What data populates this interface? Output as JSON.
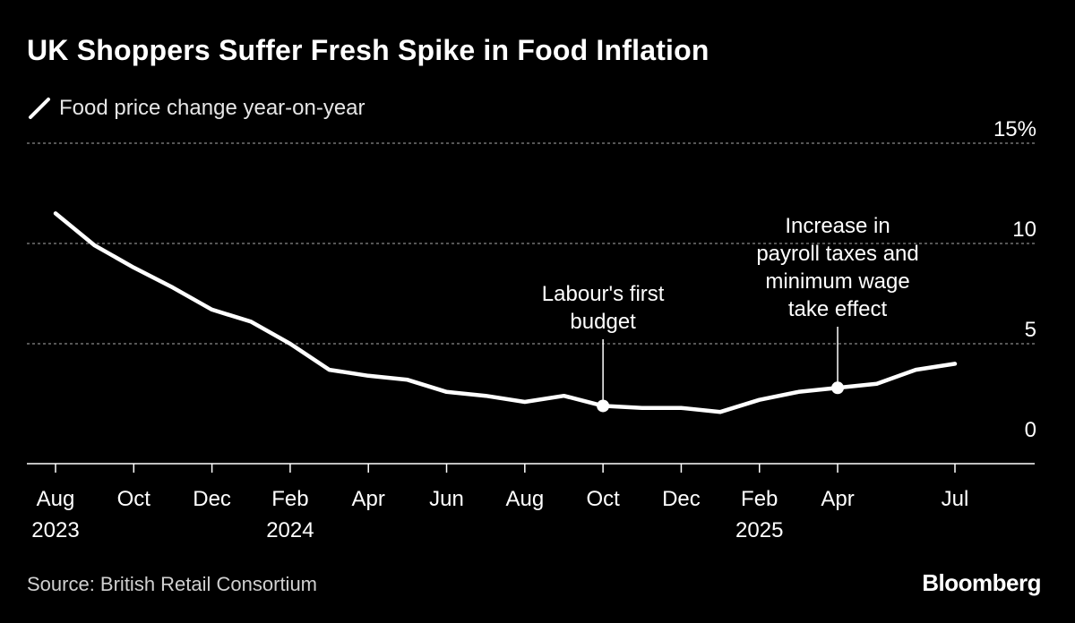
{
  "colors": {
    "background": "#000000",
    "line": "#ffffff",
    "grid": "#8a8a8a",
    "text": "#ffffff",
    "muted": "#d0d0d0"
  },
  "chart_data": {
    "type": "line",
    "title": "UK Shoppers Suffer Fresh Spike in Food Inflation",
    "series": [
      {
        "name": "Food price change year-on-year",
        "values": [
          11.5,
          9.9,
          8.8,
          7.8,
          6.7,
          6.1,
          5.0,
          3.7,
          3.4,
          3.2,
          2.6,
          2.4,
          2.1,
          2.4,
          1.9,
          1.8,
          1.8,
          1.6,
          2.2,
          2.6,
          2.8,
          3.0,
          3.7,
          4.0
        ]
      }
    ],
    "x": [
      "2023-08",
      "2023-09",
      "2023-10",
      "2023-11",
      "2023-12",
      "2024-01",
      "2024-02",
      "2024-03",
      "2024-04",
      "2024-05",
      "2024-06",
      "2024-07",
      "2024-08",
      "2024-09",
      "2024-10",
      "2024-11",
      "2024-12",
      "2025-01",
      "2025-02",
      "2025-03",
      "2025-04",
      "2025-05",
      "2025-06",
      "2025-07"
    ],
    "xticks": [
      {
        "index": 0,
        "label": "Aug",
        "year": "2023"
      },
      {
        "index": 2,
        "label": "Oct",
        "year": ""
      },
      {
        "index": 4,
        "label": "Dec",
        "year": ""
      },
      {
        "index": 6,
        "label": "Feb",
        "year": "2024"
      },
      {
        "index": 8,
        "label": "Apr",
        "year": ""
      },
      {
        "index": 10,
        "label": "Jun",
        "year": ""
      },
      {
        "index": 12,
        "label": "Aug",
        "year": ""
      },
      {
        "index": 14,
        "label": "Oct",
        "year": ""
      },
      {
        "index": 16,
        "label": "Dec",
        "year": ""
      },
      {
        "index": 18,
        "label": "Feb",
        "year": "2025"
      },
      {
        "index": 20,
        "label": "Apr",
        "year": ""
      },
      {
        "index": 23,
        "label": "Jul",
        "year": ""
      }
    ],
    "yticks": [
      {
        "value": 0,
        "label": "0"
      },
      {
        "value": 5,
        "label": "5"
      },
      {
        "value": 10,
        "label": "10"
      },
      {
        "value": 15,
        "label": "15%"
      }
    ],
    "ylim": [
      -1.2,
      15
    ],
    "grid": true,
    "annotations": [
      {
        "index": 14,
        "lines": [
          "Labour's first",
          "budget"
        ]
      },
      {
        "index": 20,
        "lines": [
          "Increase in",
          "payroll taxes and",
          "minimum wage",
          "take effect"
        ]
      }
    ],
    "legend_label": "Food price change year-on-year",
    "source": "Source: British Retail Consortium",
    "brand": "Bloomberg"
  }
}
